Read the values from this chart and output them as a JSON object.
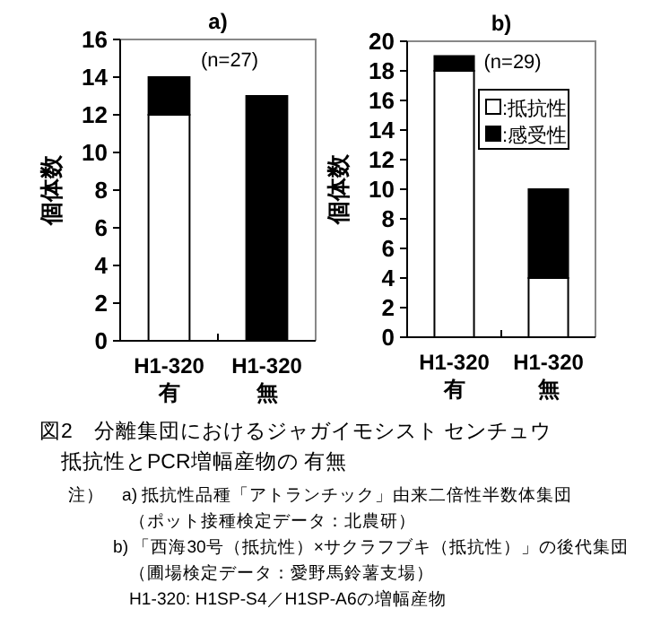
{
  "chart_data": [
    {
      "type": "bar",
      "title": "a)",
      "ylabel": "個体数",
      "categories": [
        "H1-320\n有",
        "H1-320\n無"
      ],
      "stacked": true,
      "ylim": [
        0,
        16
      ],
      "yticks": [
        0,
        2,
        4,
        6,
        8,
        10,
        12,
        14,
        16
      ],
      "legend": false,
      "grid": false,
      "series": [
        {
          "color": "#ffffff",
          "values": [
            12,
            0
          ]
        },
        {
          "color": "#000000",
          "values": [
            2,
            13
          ]
        }
      ],
      "annotations": [
        "(n=27)"
      ]
    },
    {
      "type": "bar",
      "title": "b)",
      "ylabel": "個体数",
      "categories": [
        "H1-320\n有",
        "H1-320\n無"
      ],
      "stacked": true,
      "ylim": [
        0,
        20
      ],
      "yticks": [
        0,
        2,
        4,
        6,
        8,
        10,
        12,
        14,
        16,
        18,
        20
      ],
      "legend": "top right",
      "grid": false,
      "series": [
        {
          "name": ":抵抗性",
          "color": "#ffffff",
          "values": [
            18,
            4
          ]
        },
        {
          "name": ":感受性",
          "color": "#000000",
          "values": [
            1,
            6
          ]
        }
      ],
      "annotations": [
        "(n=29)"
      ]
    },
    {
      "type": "other",
      "title": "図2　分離集団におけるジャガイモシスト センチュウ",
      "subtitle": "抵抗性とPCR増幅産物の 有無",
      "annotations": [
        "注）　a) 抵抗性品種「アトランチック」由来二倍性半数体集団",
        "（ポット接種検定データ：北農研）",
        "b) 「西海30号（抵抗性）×サクラフブキ（抵抗性）」の後代集団",
        "（圃場検定データ：愛野馬鈴薯支場）",
        "H1-320:  H1SP-S4／H1SP-A6の増幅産物"
      ]
    }
  ]
}
